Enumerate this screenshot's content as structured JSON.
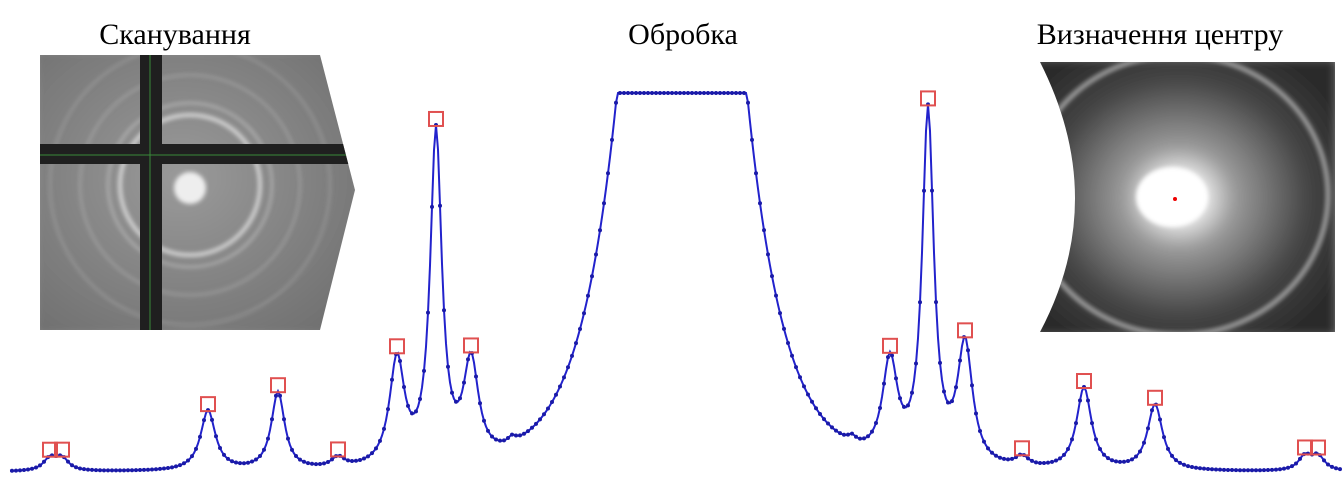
{
  "captions": {
    "scanning": "Сканування",
    "processing": "Обробка",
    "center": "Визначення центру"
  }
}
